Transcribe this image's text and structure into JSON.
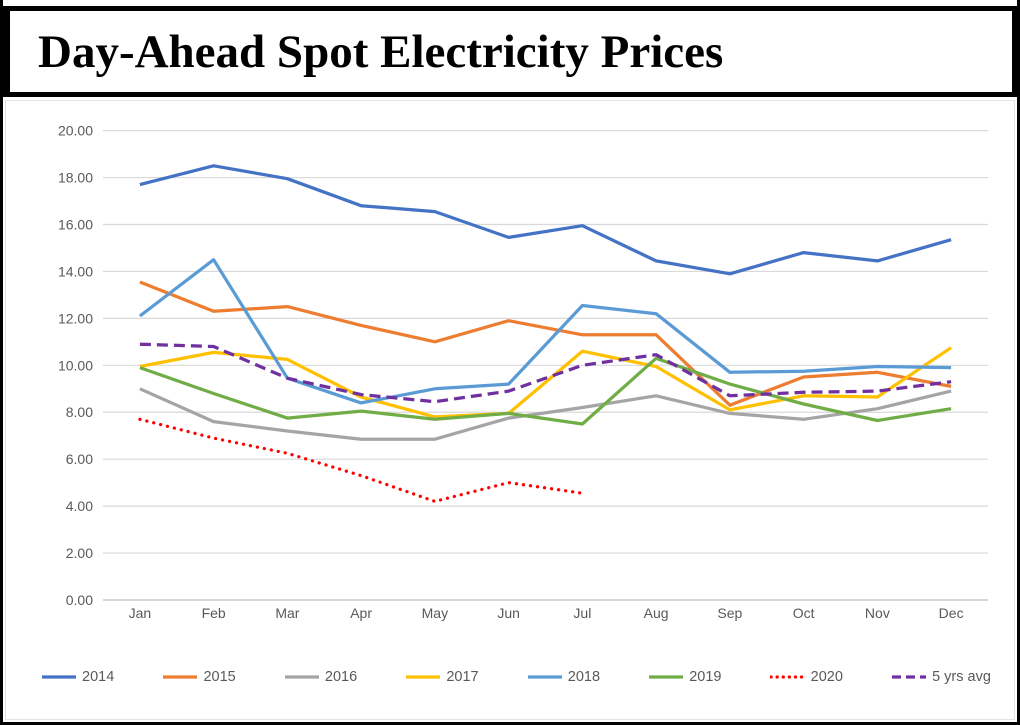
{
  "title": "Day-Ahead Spot Electricity Prices",
  "chart_data": {
    "type": "line",
    "title": "Day-Ahead Spot Electricity Prices",
    "xlabel": "",
    "ylabel": "",
    "ylim": [
      0,
      20
    ],
    "y_tick_step": 2,
    "y_ticks": [
      "0.00",
      "2.00",
      "4.00",
      "6.00",
      "8.00",
      "10.00",
      "12.00",
      "14.00",
      "16.00",
      "18.00",
      "20.00"
    ],
    "categories": [
      "Jan",
      "Feb",
      "Mar",
      "Apr",
      "May",
      "Jun",
      "Jul",
      "Aug",
      "Sep",
      "Oct",
      "Nov",
      "Dec"
    ],
    "grid": "horizontal",
    "legend_position": "bottom",
    "colors": {
      "gridline": "#D9D9D9",
      "axis_line": "#BFBFBF",
      "axis_text": "#595959",
      "legend_text": "#595959"
    },
    "series": [
      {
        "name": "2014",
        "color": "#4472C4",
        "style": "solid",
        "values": [
          17.7,
          18.5,
          17.95,
          16.8,
          16.55,
          15.45,
          15.95,
          14.45,
          13.9,
          14.8,
          14.45,
          15.35
        ]
      },
      {
        "name": "2015",
        "color": "#ED7D31",
        "style": "solid",
        "values": [
          13.55,
          12.3,
          12.5,
          11.7,
          11.0,
          11.9,
          11.3,
          11.3,
          8.3,
          9.5,
          9.7,
          9.1
        ]
      },
      {
        "name": "2016",
        "color": "#A5A5A5",
        "style": "solid",
        "values": [
          9.0,
          7.6,
          7.2,
          6.85,
          6.85,
          7.75,
          8.2,
          8.7,
          7.95,
          7.7,
          8.15,
          8.9
        ]
      },
      {
        "name": "2017",
        "color": "#FFC000",
        "style": "solid",
        "values": [
          9.95,
          10.55,
          10.25,
          8.65,
          7.8,
          7.95,
          10.6,
          9.95,
          8.1,
          8.7,
          8.65,
          10.75
        ]
      },
      {
        "name": "2018",
        "color": "#5B9BD5",
        "style": "solid",
        "values": [
          12.1,
          14.5,
          9.45,
          8.4,
          9.0,
          9.2,
          12.55,
          12.2,
          9.7,
          9.75,
          9.95,
          9.9
        ]
      },
      {
        "name": "2019",
        "color": "#70AD47",
        "style": "solid",
        "values": [
          9.9,
          8.8,
          7.75,
          8.05,
          7.7,
          7.95,
          7.5,
          10.3,
          9.2,
          8.35,
          7.65,
          8.15
        ]
      },
      {
        "name": "2020",
        "color": "#FF0000",
        "style": "dotted",
        "values": [
          7.7,
          6.9,
          6.25,
          5.3,
          4.2,
          5.0,
          4.55,
          null,
          null,
          null,
          null,
          null
        ]
      },
      {
        "name": "5 yrs avg",
        "color": "#7030A0",
        "style": "dashed",
        "values": [
          10.9,
          10.8,
          9.45,
          8.75,
          8.45,
          8.9,
          10.0,
          10.45,
          8.7,
          8.85,
          8.9,
          9.3
        ]
      }
    ]
  }
}
